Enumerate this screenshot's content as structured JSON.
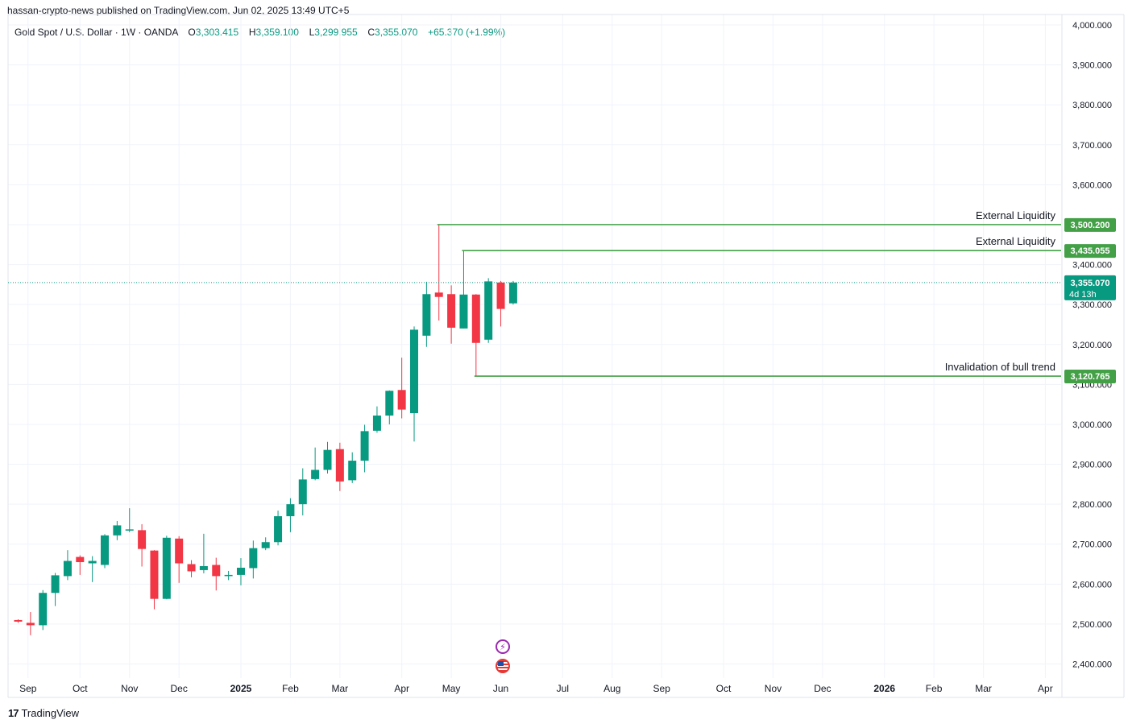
{
  "publish_line": "hassan-crypto-news published on TradingView.com, Jun 02, 2025 13:49 UTC+5",
  "legend": {
    "symbol": "Gold Spot / U.S. Dollar · 1W · OANDA",
    "o_label": "O",
    "o_value": "3,303.415",
    "h_label": "H",
    "h_value": "3,359.100",
    "l_label": "L",
    "l_value": "3,299.955",
    "c_label": "C",
    "c_value": "3,355.070",
    "change": "+65.370 (+1.99%)"
  },
  "footer": {
    "brand": "TradingView",
    "logo_glyph": "17"
  },
  "colors": {
    "up": "#089981",
    "down": "#f23645",
    "level": "#43a047",
    "grid": "#f0f3fa"
  },
  "events": [
    {
      "icon": "lightning-icon"
    },
    {
      "icon": "us-flag-icon"
    }
  ],
  "chart_data": {
    "type": "candlestick",
    "ylim": [
      2380,
      4020
    ],
    "yticks": [
      {
        "value": 2400,
        "label": "2,400.000"
      },
      {
        "value": 2500,
        "label": "2,500.000"
      },
      {
        "value": 2600,
        "label": "2,600.000"
      },
      {
        "value": 2700,
        "label": "2,700.000"
      },
      {
        "value": 2800,
        "label": "2,800.000"
      },
      {
        "value": 2900,
        "label": "2,900.000"
      },
      {
        "value": 3000,
        "label": "3,000.000"
      },
      {
        "value": 3100,
        "label": "3,100.000"
      },
      {
        "value": 3200,
        "label": "3,200.000"
      },
      {
        "value": 3300,
        "label": "3,300.000"
      },
      {
        "value": 3400,
        "label": "3,400.000"
      },
      {
        "value": 3500,
        "label": "3,500.000"
      },
      {
        "value": 3600,
        "label": "3,600.000"
      },
      {
        "value": 3700,
        "label": "3,700.000"
      },
      {
        "value": 3800,
        "label": "3,800.000"
      },
      {
        "value": 3900,
        "label": "3,900.000"
      },
      {
        "value": 4000,
        "label": "4,000.000"
      }
    ],
    "xticks": [
      {
        "week": 0.8,
        "label": "Sep",
        "bold": false
      },
      {
        "week": 5,
        "label": "Oct",
        "bold": false
      },
      {
        "week": 9,
        "label": "Nov",
        "bold": false
      },
      {
        "week": 13,
        "label": "Dec",
        "bold": false
      },
      {
        "week": 18,
        "label": "2025",
        "bold": true
      },
      {
        "week": 22,
        "label": "Feb",
        "bold": false
      },
      {
        "week": 26,
        "label": "Mar",
        "bold": false
      },
      {
        "week": 31,
        "label": "Apr",
        "bold": false
      },
      {
        "week": 35,
        "label": "May",
        "bold": false
      },
      {
        "week": 39,
        "label": "Jun",
        "bold": false
      },
      {
        "week": 44,
        "label": "Jul",
        "bold": false
      },
      {
        "week": 48,
        "label": "Aug",
        "bold": false
      },
      {
        "week": 52,
        "label": "Sep",
        "bold": false
      },
      {
        "week": 57,
        "label": "Oct",
        "bold": false
      },
      {
        "week": 61,
        "label": "Nov",
        "bold": false
      },
      {
        "week": 65,
        "label": "Dec",
        "bold": false
      },
      {
        "week": 70,
        "label": "2026",
        "bold": true
      },
      {
        "week": 74,
        "label": "Feb",
        "bold": false
      },
      {
        "week": 78,
        "label": "Mar",
        "bold": false
      },
      {
        "week": 83,
        "label": "Apr",
        "bold": false
      }
    ],
    "candles": [
      {
        "o": 2510,
        "h": 2512,
        "l": 2503,
        "c": 2506
      },
      {
        "o": 2503,
        "h": 2530,
        "l": 2472,
        "c": 2497
      },
      {
        "o": 2497,
        "h": 2585,
        "l": 2485,
        "c": 2578
      },
      {
        "o": 2578,
        "h": 2628,
        "l": 2545,
        "c": 2622
      },
      {
        "o": 2620,
        "h": 2685,
        "l": 2610,
        "c": 2658
      },
      {
        "o": 2668,
        "h": 2672,
        "l": 2623,
        "c": 2655
      },
      {
        "o": 2652,
        "h": 2670,
        "l": 2605,
        "c": 2658
      },
      {
        "o": 2648,
        "h": 2725,
        "l": 2640,
        "c": 2722
      },
      {
        "o": 2722,
        "h": 2758,
        "l": 2710,
        "c": 2747
      },
      {
        "o": 2735,
        "h": 2790,
        "l": 2730,
        "c": 2737
      },
      {
        "o": 2735,
        "h": 2750,
        "l": 2644,
        "c": 2688
      },
      {
        "o": 2684,
        "h": 2685,
        "l": 2537,
        "c": 2563
      },
      {
        "o": 2563,
        "h": 2721,
        "l": 2562,
        "c": 2716
      },
      {
        "o": 2714,
        "h": 2720,
        "l": 2603,
        "c": 2652
      },
      {
        "o": 2650,
        "h": 2660,
        "l": 2617,
        "c": 2632
      },
      {
        "o": 2635,
        "h": 2726,
        "l": 2627,
        "c": 2645
      },
      {
        "o": 2648,
        "h": 2666,
        "l": 2584,
        "c": 2620
      },
      {
        "o": 2622,
        "h": 2633,
        "l": 2610,
        "c": 2623
      },
      {
        "o": 2623,
        "h": 2665,
        "l": 2597,
        "c": 2641
      },
      {
        "o": 2640,
        "h": 2709,
        "l": 2614,
        "c": 2690
      },
      {
        "o": 2690,
        "h": 2717,
        "l": 2685,
        "c": 2705
      },
      {
        "o": 2705,
        "h": 2784,
        "l": 2697,
        "c": 2770
      },
      {
        "o": 2770,
        "h": 2815,
        "l": 2730,
        "c": 2800
      },
      {
        "o": 2800,
        "h": 2890,
        "l": 2772,
        "c": 2862
      },
      {
        "o": 2863,
        "h": 2942,
        "l": 2860,
        "c": 2886
      },
      {
        "o": 2886,
        "h": 2956,
        "l": 2877,
        "c": 2936
      },
      {
        "o": 2938,
        "h": 2954,
        "l": 2833,
        "c": 2857
      },
      {
        "o": 2860,
        "h": 2930,
        "l": 2853,
        "c": 2909
      },
      {
        "o": 2909,
        "h": 2999,
        "l": 2880,
        "c": 2983
      },
      {
        "o": 2984,
        "h": 3045,
        "l": 2979,
        "c": 3022
      },
      {
        "o": 3022,
        "h": 3085,
        "l": 3000,
        "c": 3084
      },
      {
        "o": 3086,
        "h": 3167,
        "l": 3015,
        "c": 3037
      },
      {
        "o": 3028,
        "h": 3245,
        "l": 2957,
        "c": 3237
      },
      {
        "o": 3222,
        "h": 3357,
        "l": 3194,
        "c": 3326
      },
      {
        "o": 3330,
        "h": 3500,
        "l": 3260,
        "c": 3319
      },
      {
        "o": 3326,
        "h": 3348,
        "l": 3202,
        "c": 3242
      },
      {
        "o": 3240,
        "h": 3435,
        "l": 3240,
        "c": 3325
      },
      {
        "o": 3325,
        "h": 3326,
        "l": 3121,
        "c": 3204
      },
      {
        "o": 3212,
        "h": 3366,
        "l": 3204,
        "c": 3358
      },
      {
        "o": 3355,
        "h": 3359,
        "l": 3245,
        "c": 3289
      },
      {
        "o": 3303,
        "h": 3359,
        "l": 3300,
        "c": 3355
      }
    ],
    "levels": [
      {
        "name": "External Liquidity",
        "value": 3500.2,
        "label": "3,500.200",
        "start_week": 34
      },
      {
        "name": "External Liquidity",
        "value": 3435.055,
        "label": "3,435.055",
        "start_week": 36
      },
      {
        "name": "Invalidation of bull trend",
        "value": 3120.765,
        "label": "3,120.765",
        "start_week": 37
      }
    ],
    "last_price": {
      "value": 3355.07,
      "label": "3,355.070",
      "countdown": "4d 13h"
    }
  }
}
